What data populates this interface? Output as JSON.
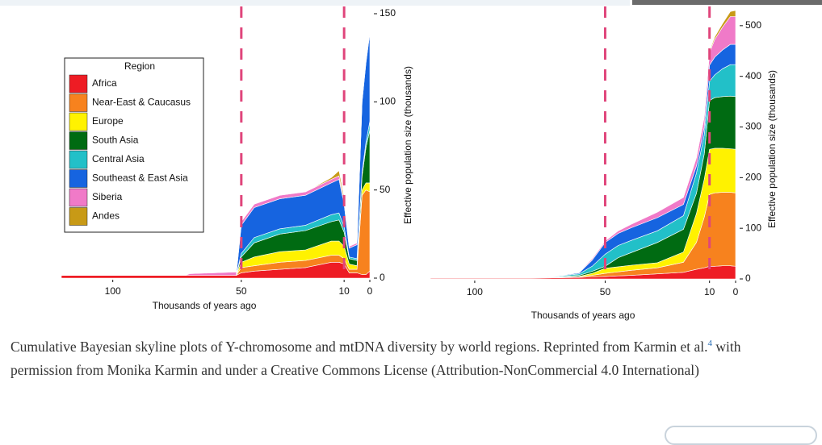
{
  "chart_data": [
    {
      "type": "stacked_area",
      "xlabel": "Thousands of years ago",
      "ylabel": "Effective population size (thousands)",
      "legend_title": "Region",
      "legend": "upper left",
      "x": [
        120,
        72,
        70,
        52,
        50,
        45,
        35,
        25,
        15,
        12,
        10,
        8,
        5,
        3,
        1.5,
        0
      ],
      "xlim": [
        120,
        0
      ],
      "xticks": [
        100,
        50,
        10,
        0
      ],
      "ylim": [
        0,
        150
      ],
      "yticks": [
        0,
        50,
        100,
        150
      ],
      "vlines": [
        50,
        10
      ],
      "vline_color": "#e0457b",
      "series": [
        {
          "name": "Africa",
          "color": "#ee1c24",
          "values": [
            1.5,
            1.5,
            1.5,
            1.5,
            3,
            4,
            5,
            6,
            9,
            9,
            8,
            3,
            3,
            2,
            2,
            4
          ]
        },
        {
          "name": "Near-East & Caucasus",
          "color": "#f7821e",
          "values": [
            0,
            0,
            0,
            0,
            3,
            3,
            4,
            4,
            4,
            4,
            3,
            2,
            2,
            45,
            48,
            45
          ]
        },
        {
          "name": "Europe",
          "color": "#fff200",
          "values": [
            0,
            0,
            0,
            0,
            3,
            5,
            6,
            6,
            8,
            8,
            7,
            3,
            2,
            3,
            4,
            5
          ]
        },
        {
          "name": "South Asia",
          "color": "#006b12",
          "values": [
            0,
            0,
            0,
            0,
            3,
            8,
            10,
            11,
            11,
            12,
            8,
            3,
            3,
            8,
            20,
            30
          ]
        },
        {
          "name": "Central Asia",
          "color": "#22c0c8",
          "values": [
            0,
            0,
            0,
            0,
            2,
            3,
            3,
            3,
            4,
            4,
            3,
            1,
            1,
            2,
            3,
            5
          ]
        },
        {
          "name": "Southeast & East Asia",
          "color": "#1664e0",
          "values": [
            0,
            0,
            0,
            0,
            16,
            17,
            17,
            17,
            18,
            19,
            13,
            5,
            8,
            40,
            45,
            50
          ]
        },
        {
          "name": "Siberia",
          "color": "#f07ac8",
          "values": [
            0,
            0,
            1,
            2,
            2,
            2,
            2,
            2,
            2,
            2,
            2,
            1,
            1,
            1,
            1,
            2
          ]
        },
        {
          "name": "Andes",
          "color": "#c89a16",
          "values": [
            0,
            0,
            0,
            0,
            0,
            0,
            0,
            0,
            1,
            3,
            2,
            0,
            0,
            0,
            0,
            0
          ]
        }
      ]
    },
    {
      "type": "stacked_area",
      "xlabel": "Thousands of years ago",
      "ylabel": "Effective population size (thousands)",
      "x": [
        117,
        80,
        70,
        60,
        55,
        50,
        45,
        40,
        30,
        20,
        15,
        12,
        10,
        8,
        5,
        2,
        0
      ],
      "xlim": [
        117,
        0
      ],
      "xticks": [
        100,
        50,
        10,
        0
      ],
      "ylim": [
        0,
        530
      ],
      "yticks": [
        0,
        100,
        200,
        300,
        400,
        500
      ],
      "vlines": [
        50,
        10
      ],
      "vline_color": "#e0457b",
      "series": [
        {
          "name": "Africa",
          "color": "#ee1c24",
          "values": [
            1.5,
            1.5,
            2,
            3,
            4,
            5,
            6,
            7,
            10,
            13,
            19,
            22,
            25,
            25,
            26,
            26,
            25
          ]
        },
        {
          "name": "Near-East & Caucasus",
          "color": "#f7821e",
          "values": [
            0,
            0,
            0.5,
            1,
            3,
            6,
            8,
            10,
            12,
            20,
            53,
            100,
            142,
            145,
            145,
            145,
            145
          ]
        },
        {
          "name": "Europe",
          "color": "#fff200",
          "values": [
            0,
            0,
            0.5,
            1,
            4,
            10,
            10,
            10,
            10,
            20,
            57,
            75,
            89,
            88,
            87,
            86,
            86
          ]
        },
        {
          "name": "South Asia",
          "color": "#006b12",
          "values": [
            0,
            0,
            0.5,
            2,
            4,
            4,
            18,
            25,
            40,
            45,
            40,
            50,
            96,
            100,
            102,
            104,
            104
          ]
        },
        {
          "name": "Central Asia",
          "color": "#22c0c8",
          "values": [
            0,
            0,
            1,
            3,
            10,
            24,
            24,
            24,
            23,
            27,
            40,
            38,
            38,
            45,
            55,
            62,
            63
          ]
        },
        {
          "name": "Southeast & East Asia",
          "color": "#1664e0",
          "values": [
            0,
            0,
            0.5,
            2,
            12,
            23,
            24,
            25,
            26,
            22,
            14,
            15,
            32,
            35,
            37,
            40,
            40
          ]
        },
        {
          "name": "Siberia",
          "color": "#f07ac8",
          "values": [
            0,
            0,
            0.5,
            1,
            3,
            3,
            5,
            7,
            11,
            14,
            16,
            20,
            25,
            35,
            45,
            55,
            55
          ]
        },
        {
          "name": "Andes",
          "color": "#c89a16",
          "values": [
            0,
            0,
            0,
            0,
            0,
            0,
            0,
            0,
            0,
            1,
            1,
            2,
            3,
            5,
            7,
            10,
            12
          ]
        }
      ]
    }
  ],
  "caption": {
    "text": "Cumulative Bayesian skyline plots of Y-chromosome and mtDNA diversity by world regions. Reprinted from Karmin et al.",
    "citation": "4",
    "text_after": " with permission from Monika Karmin and under a Creative Commons License (Attribution-NonCommercial 4.0 International)"
  }
}
